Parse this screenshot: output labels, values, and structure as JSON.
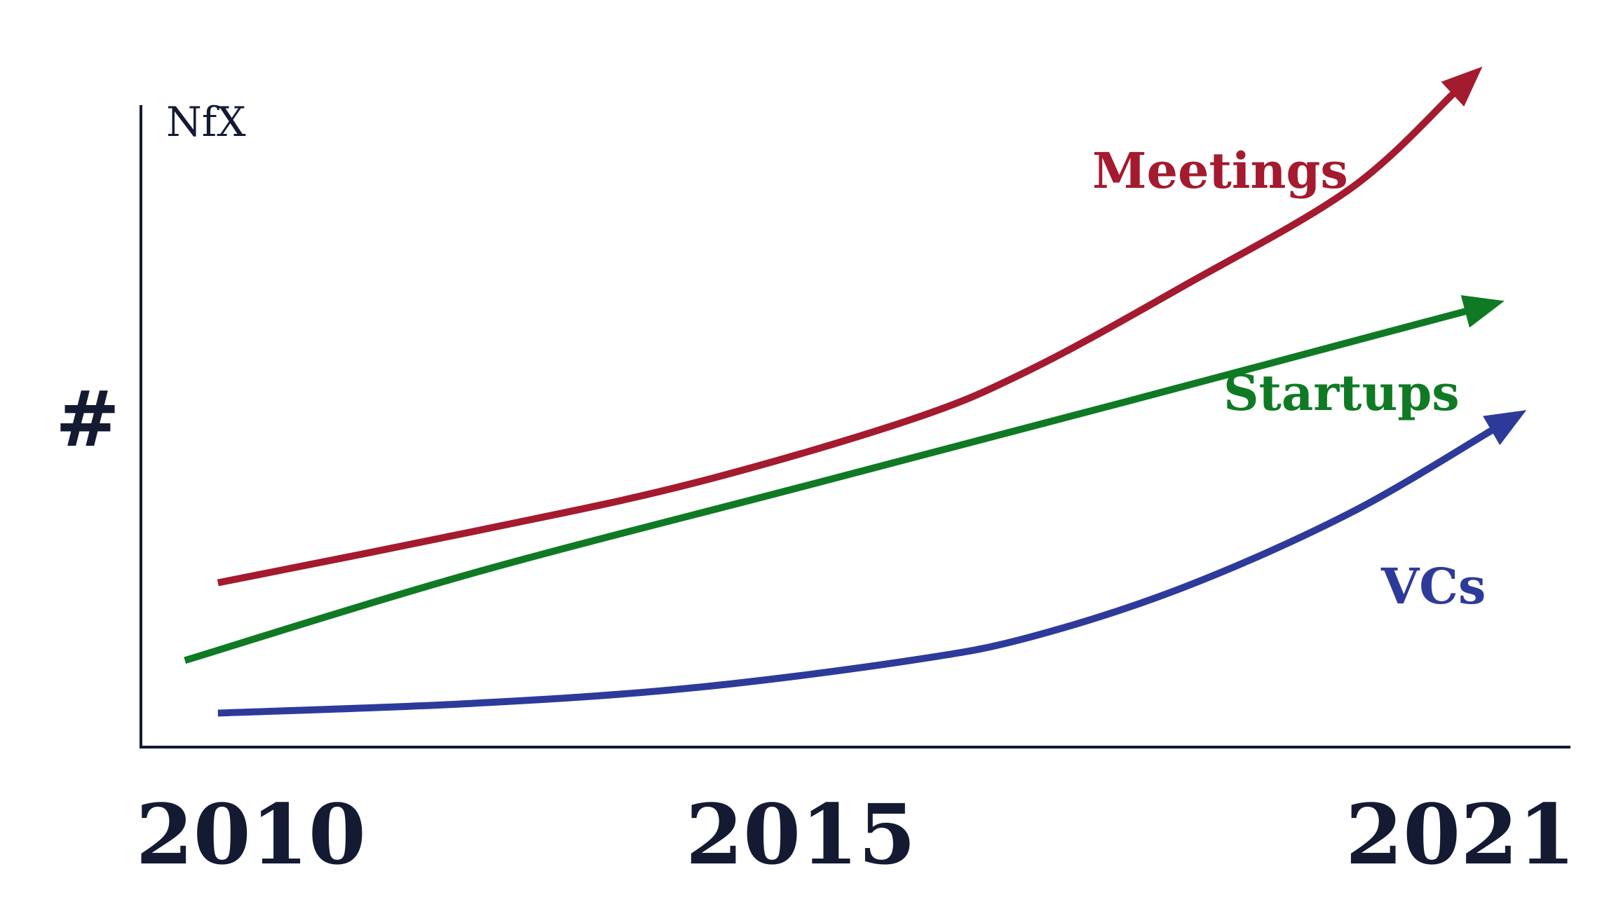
{
  "logo": "NfX",
  "chart_data": {
    "type": "line",
    "title": "",
    "xlabel": "",
    "ylabel": "#",
    "xlim": [
      2009,
      2022
    ],
    "ylim": [
      0,
      100
    ],
    "x_ticks": [
      "2010",
      "2015",
      "2021"
    ],
    "grid": false,
    "legend": "inline labels near line ends",
    "series": [
      {
        "name": "Meetings",
        "color": "#a41a2e",
        "x": [
          2009.7,
          2012,
          2014,
          2016,
          2017.1,
          2018.5,
          2020,
          2021.2
        ],
        "y": [
          25.6,
          33.5,
          41,
          51,
          58.9,
          72,
          87,
          106
        ]
      },
      {
        "name": "Startups",
        "color": "#0f7a23",
        "x": [
          2009.4,
          2012,
          2015,
          2018,
          2021.4
        ],
        "y": [
          13.5,
          27,
          40.5,
          54,
          69.5
        ]
      },
      {
        "name": "VCs",
        "color": "#2e3a9a",
        "x": [
          2009.7,
          2012,
          2014,
          2016,
          2017.1,
          2018.5,
          2020,
          2021.6
        ],
        "y": [
          5.3,
          6.8,
          9.2,
          13.5,
          17.2,
          25,
          36.5,
          52.5
        ]
      }
    ]
  }
}
